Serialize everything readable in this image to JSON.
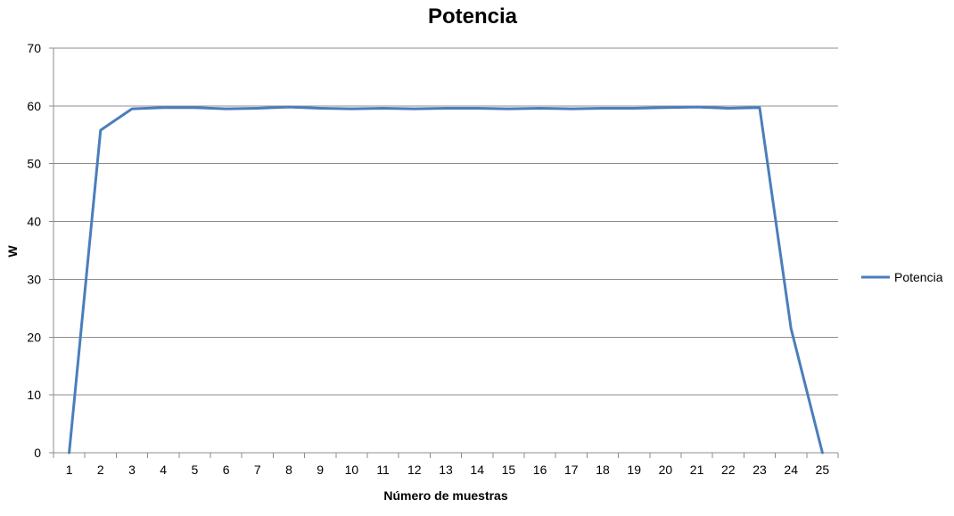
{
  "chart_data": {
    "type": "line",
    "title": "Potencia",
    "xlabel": "Número de muestras",
    "ylabel": "W",
    "categories": [
      "1",
      "2",
      "3",
      "4",
      "5",
      "6",
      "7",
      "8",
      "9",
      "10",
      "11",
      "12",
      "13",
      "14",
      "15",
      "16",
      "17",
      "18",
      "19",
      "20",
      "21",
      "22",
      "23",
      "24",
      "25"
    ],
    "series": [
      {
        "name": "Potencia",
        "color": "#4a7ebb",
        "values": [
          0,
          55.8,
          59.5,
          59.7,
          59.7,
          59.5,
          59.6,
          59.8,
          59.6,
          59.5,
          59.6,
          59.5,
          59.6,
          59.6,
          59.5,
          59.6,
          59.5,
          59.6,
          59.6,
          59.7,
          59.8,
          59.6,
          59.7,
          21.5,
          0
        ]
      }
    ],
    "ylim": [
      0,
      70
    ],
    "yticks": [
      0,
      10,
      20,
      30,
      40,
      50,
      60,
      70
    ],
    "grid": true,
    "legend": "right"
  }
}
